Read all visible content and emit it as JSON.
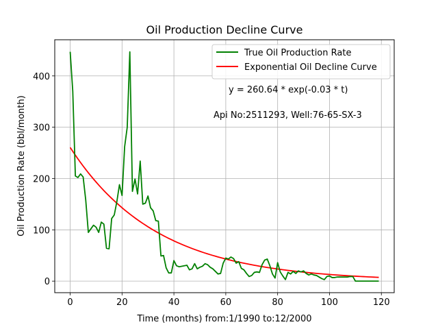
{
  "chart_data": {
    "type": "line",
    "title": "Oil Production Decline Curve",
    "xlabel": "Time (months) from:1/1990 to:12/2000",
    "ylabel": "Oil Production Rate (bbl/month)",
    "xlim": [
      -5.95,
      124.95
    ],
    "ylim": [
      -22.5,
      470.5
    ],
    "xticks": [
      0,
      20,
      40,
      60,
      80,
      100,
      120
    ],
    "yticks": [
      0,
      100,
      200,
      300,
      400
    ],
    "grid": true,
    "legend_position": "upper right",
    "annotations": [
      "y = 260.64 * exp(-0.03 * t)",
      "Api No:2511293, Well:76-65-SX-3"
    ],
    "series": [
      {
        "name": "True Oil Production Rate",
        "color": "#008000",
        "x": [
          0,
          1,
          2,
          3,
          4,
          5,
          6,
          7,
          8,
          9,
          10,
          11,
          12,
          13,
          14,
          15,
          16,
          17,
          18,
          19,
          20,
          21,
          22,
          23,
          24,
          25,
          26,
          27,
          28,
          29,
          30,
          31,
          32,
          33,
          34,
          35,
          36,
          37,
          38,
          39,
          40,
          41,
          42,
          43,
          44,
          45,
          46,
          47,
          48,
          49,
          50,
          51,
          52,
          53,
          54,
          55,
          56,
          57,
          58,
          59,
          60,
          61,
          62,
          63,
          64,
          65,
          66,
          67,
          68,
          69,
          70,
          71,
          72,
          73,
          74,
          75,
          76,
          77,
          78,
          79,
          80,
          81,
          82,
          83,
          84,
          85,
          86,
          87,
          88,
          89,
          90,
          91,
          92,
          93,
          94,
          95,
          96,
          97,
          98,
          99,
          100,
          101,
          102,
          103,
          104,
          105,
          106,
          107,
          108,
          109,
          110,
          111,
          112,
          113,
          114,
          115,
          116,
          117,
          118,
          119
        ],
        "values": [
          447,
          370,
          205,
          202,
          209,
          203,
          158,
          95,
          102,
          109,
          105,
          95,
          115,
          111,
          64,
          63,
          122,
          129,
          155,
          188,
          167,
          262,
          300,
          447,
          175,
          199,
          170,
          234,
          150,
          152,
          166,
          143,
          137,
          118,
          117,
          49,
          50,
          26,
          16,
          16,
          40,
          30,
          28,
          29,
          30,
          31,
          22,
          24,
          34,
          24,
          27,
          29,
          34,
          32,
          27,
          24,
          19,
          14,
          15,
          35,
          45,
          43,
          47,
          44,
          35,
          38,
          25,
          22,
          15,
          9,
          11,
          17,
          18,
          17,
          32,
          41,
          43,
          30,
          14,
          6,
          36,
          18,
          10,
          3,
          17,
          14,
          19,
          15,
          20,
          18,
          20,
          15,
          12,
          14,
          12,
          11,
          8,
          5,
          3,
          9,
          10,
          7,
          7,
          8,
          8,
          8,
          8,
          8,
          9,
          9,
          0,
          0,
          0,
          0,
          0,
          0,
          0,
          0,
          0,
          0
        ]
      },
      {
        "name": "Exponential Oil Decline Curve",
        "color": "#ff0000",
        "equation": {
          "a": 260.64,
          "b": 0.03
        },
        "x_range": [
          0,
          119
        ]
      }
    ]
  }
}
